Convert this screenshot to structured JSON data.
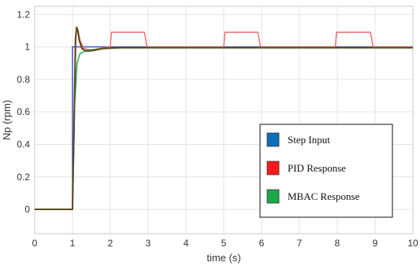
{
  "chart_data": {
    "type": "line",
    "title": "",
    "xlabel": "time (s)",
    "ylabel": "Np (rpm)",
    "xlim": [
      0,
      10
    ],
    "ylim": [
      -0.15,
      1.25
    ],
    "x_ticks": [
      0,
      1,
      2,
      3,
      4,
      5,
      6,
      7,
      8,
      9,
      10
    ],
    "y_ticks": [
      0,
      0.2,
      0.4,
      0.6,
      0.8,
      1,
      1.2
    ],
    "x_tick_labels": [
      "0",
      "1",
      "2",
      "3",
      "4",
      "5",
      "6",
      "7",
      "8",
      "9",
      "10"
    ],
    "y_tick_labels": [
      "0",
      "0.2",
      "0.4",
      "0.6",
      "0.8",
      "1",
      "1.2"
    ],
    "grid": true,
    "legend_position": "bottom-right",
    "series": [
      {
        "name": "Step Input",
        "color": "#3344cc",
        "legend_color": "#0b6fb8",
        "x": [
          0,
          1,
          1,
          10
        ],
        "y": [
          0,
          0,
          1,
          1
        ]
      },
      {
        "name": "PID Response",
        "color": "#e86a6a",
        "legend_color": "#ff1a1a",
        "x": [
          0,
          1,
          1.05,
          1.1,
          1.15,
          1.2,
          1.3,
          1.5,
          1.7,
          2.0,
          2.03,
          2.9,
          2.97,
          5.0,
          5.03,
          5.9,
          5.97,
          7.95,
          7.98,
          8.88,
          8.95,
          10
        ],
        "y": [
          0,
          0,
          0.6,
          1.12,
          1.1,
          1.04,
          0.99,
          0.98,
          0.99,
          1.0,
          1.09,
          1.09,
          1.0,
          1.0,
          1.09,
          1.09,
          1.0,
          1.0,
          1.09,
          1.09,
          1.0,
          1.0
        ]
      },
      {
        "name": "MBAC Response",
        "color": "#1aa84a",
        "legend_color": "#1aa84a",
        "x": [
          0,
          1,
          1.06,
          1.12,
          1.2,
          1.4,
          1.8,
          2.5,
          10
        ],
        "y": [
          0,
          0,
          0.65,
          0.9,
          0.96,
          0.98,
          0.99,
          0.995,
          0.995
        ]
      },
      {
        "name": "",
        "color": "#5a4a1a",
        "x": [
          0,
          1,
          1.04,
          1.08,
          1.11,
          1.14,
          1.18,
          1.25,
          1.35,
          1.45,
          1.6,
          1.8,
          2.2,
          3,
          10
        ],
        "y": [
          0,
          0,
          0.5,
          1.05,
          1.12,
          1.1,
          1.04,
          0.99,
          0.975,
          0.975,
          0.98,
          0.99,
          0.995,
          0.995,
          0.995
        ]
      }
    ],
    "legend": [
      "Step Input",
      "PID Response",
      "MBAC Response"
    ]
  }
}
